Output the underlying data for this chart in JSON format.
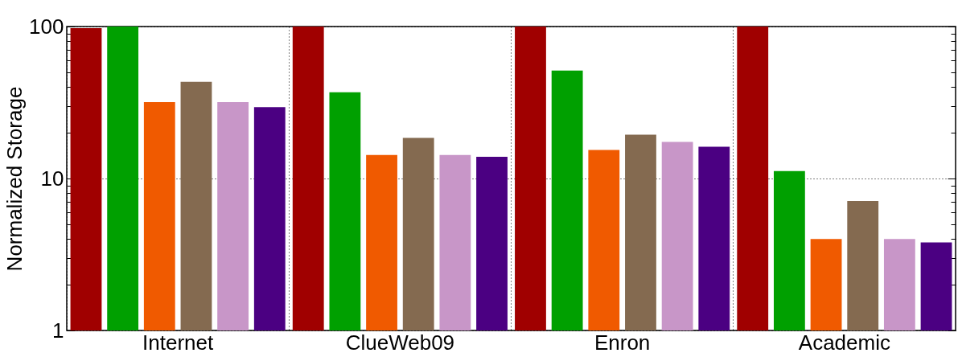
{
  "chart_data": {
    "type": "bar",
    "ylabel": "Normalized Storage",
    "categories": [
      "Internet",
      "ClueWeb09",
      "Enron",
      "Academic"
    ],
    "series": [
      {
        "color": "#a00000",
        "values": [
          97.6,
          100,
          100,
          100
        ]
      },
      {
        "color": "#00a000",
        "values": [
          100,
          36.9,
          51.4,
          11.2
        ]
      },
      {
        "color": "#f05a00",
        "values": [
          31.8,
          14.3,
          15.4,
          4.0
        ]
      },
      {
        "color": "#846a50",
        "values": [
          43.3,
          18.5,
          19.4,
          7.1
        ]
      },
      {
        "color": "#c896c8",
        "values": [
          31.8,
          14.3,
          17.4,
          4.0
        ]
      },
      {
        "color": "#4b0082",
        "values": [
          29.5,
          13.9,
          16.2,
          3.8
        ]
      }
    ],
    "log": true,
    "ylim": [
      1,
      100
    ],
    "yticks": [
      1,
      {
        "value": 2,
        "label": null
      },
      {
        "value": 3,
        "label": null
      },
      {
        "value": 4,
        "label": null
      },
      {
        "value": 5,
        "label": null
      },
      {
        "value": 6,
        "label": null
      },
      {
        "value": 7,
        "label": null
      },
      {
        "value": 8,
        "label": null
      },
      {
        "value": 9,
        "label": null
      },
      10,
      {
        "value": 20,
        "label": null
      },
      {
        "value": 30,
        "label": null
      },
      {
        "value": 40,
        "label": null
      },
      {
        "value": 50,
        "label": null
      },
      {
        "value": 60,
        "label": null
      },
      {
        "value": 70,
        "label": null
      },
      {
        "value": 80,
        "label": null
      },
      {
        "value": 90,
        "label": null
      },
      100
    ],
    "grid": true
  }
}
